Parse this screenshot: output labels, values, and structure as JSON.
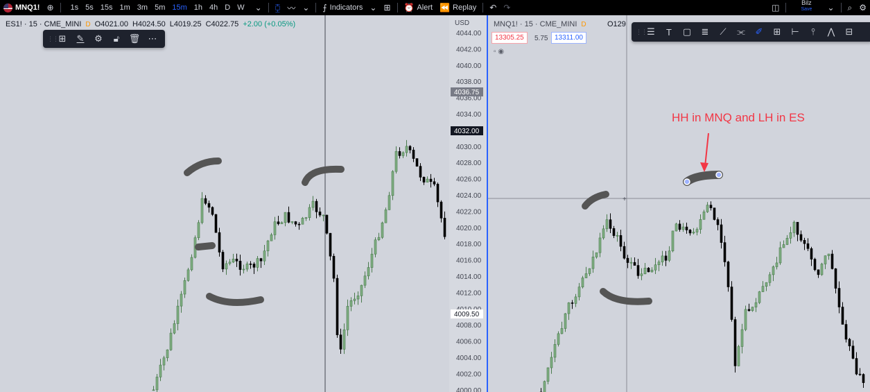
{
  "topbar": {
    "symbol": "MNQ1!",
    "timeframes": [
      "1s",
      "5s",
      "15s",
      "1m",
      "3m",
      "5m",
      "15m",
      "1h",
      "4h",
      "D",
      "W"
    ],
    "active_timeframe": "15m",
    "indicators_label": "Indicators",
    "alert_label": "Alert",
    "replay_label": "Replay",
    "user_name": "Bilz",
    "user_save": "Save"
  },
  "left_chart": {
    "title": "ES1! · 15 · CME_MINI",
    "d_badge": "D",
    "open": "O4021.00",
    "high": "H4024.50",
    "low": "L4019.25",
    "close": "C4022.75",
    "change": "+2.00 (+0.05%)",
    "currency": "USD",
    "price_ticks": [
      "4044.00",
      "4042.00",
      "4040.00",
      "4038.00",
      "4036.00",
      "4034.00",
      "4032.00",
      "4030.00",
      "4028.00",
      "4026.00",
      "4024.00",
      "4022.00",
      "4020.00",
      "4018.00",
      "4016.00",
      "4014.00",
      "4012.00",
      "4010.00",
      "4008.00",
      "4006.00",
      "4004.00",
      "4002.00",
      "4000.00"
    ],
    "badge_high": "4036.75",
    "badge_current": "4032.00",
    "badge_crosshair": "4009.50"
  },
  "right_chart": {
    "title": "MNQ1! · 15 · CME_MINI",
    "d_badge": "D",
    "ohlc_fragment": "O129",
    "sell_price": "13305.25",
    "spread": "5.75",
    "buy_price": "13311.00",
    "annotation": "HH in MNQ and LH in ES"
  },
  "colors": {
    "up": "#4a7a4d",
    "down": "#000000",
    "pane_bg": "#d1d4dc",
    "accent": "#2962ff",
    "annotation": "#f23645",
    "marker": "#555555"
  }
}
